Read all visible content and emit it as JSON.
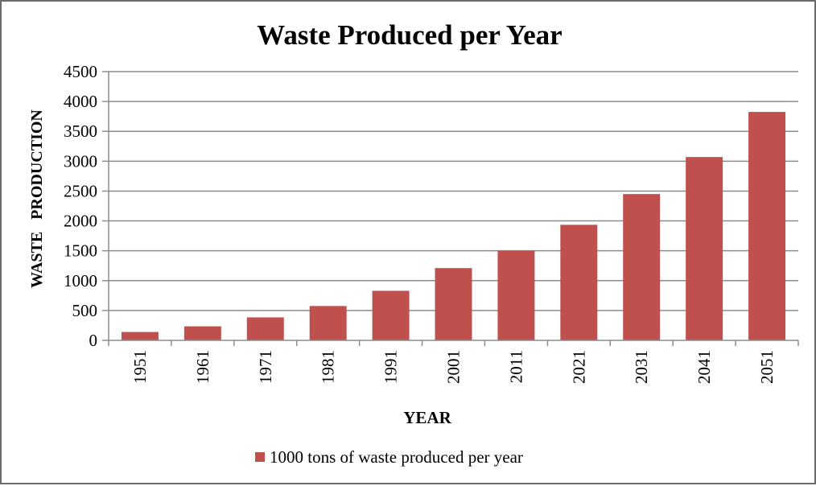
{
  "chart_data": {
    "type": "bar",
    "title": "Waste Produced per Year",
    "xlabel": "YEAR",
    "ylabel": "WASTE   PRODUCTION",
    "categories": [
      "1951",
      "1961",
      "1971",
      "1981",
      "1991",
      "2001",
      "2011",
      "2021",
      "2031",
      "2041",
      "2051"
    ],
    "series": [
      {
        "name": "1000 tons of waste produced per year",
        "values": [
          140,
          235,
          385,
          575,
          830,
          1210,
          1500,
          1935,
          2450,
          3070,
          3825
        ],
        "color": "#c0504d"
      }
    ],
    "ylim": [
      0,
      4500
    ],
    "yticks": [
      0,
      500,
      1000,
      1500,
      2000,
      2500,
      3000,
      3500,
      4000,
      4500
    ],
    "grid": true,
    "legend_position": "bottom"
  }
}
